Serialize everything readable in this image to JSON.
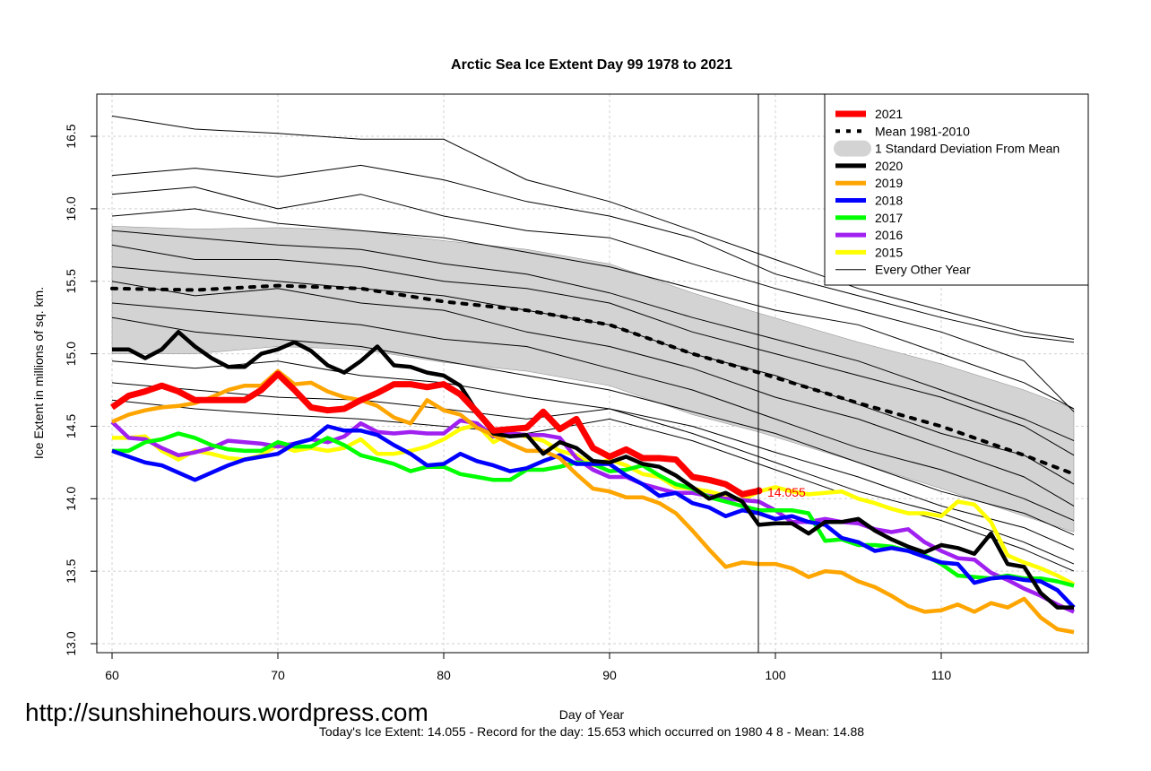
{
  "chart_data": {
    "type": "line",
    "title": "Arctic Sea Ice Extent Day 99 1978 to 2021",
    "xlabel": "Day of Year",
    "ylabel": "Ice Extent in millions of sq. km.",
    "xlim": [
      59,
      118.8
    ],
    "ylim": [
      12.93,
      16.98
    ],
    "x_ticks": [
      60,
      70,
      80,
      90,
      100,
      110
    ],
    "y_ticks": [
      13.0,
      13.5,
      14.0,
      14.5,
      15.0,
      15.5,
      16.0,
      16.5
    ],
    "y_tick_labels": [
      "13.0",
      "13.5",
      "14.0",
      "14.5",
      "15.0",
      "15.5",
      "16.0",
      "16.5"
    ],
    "grid": true,
    "legend_position": "top-right",
    "vertical_marker_day": 99,
    "annotation": {
      "day": 99,
      "value": 14.055,
      "text": "14.055",
      "color": "#ff0000"
    },
    "mean": {
      "name": "Mean 1981-2010",
      "days": [
        60,
        65,
        70,
        75,
        80,
        85,
        90,
        95,
        99,
        105,
        110,
        115,
        118
      ],
      "values": [
        15.45,
        15.44,
        15.47,
        15.45,
        15.36,
        15.3,
        15.2,
        15.0,
        14.87,
        14.66,
        14.5,
        14.3,
        14.17
      ]
    },
    "std_band": {
      "name": "1 Standard Deviation From Mean",
      "days": [
        60,
        65,
        70,
        75,
        80,
        85,
        90,
        95,
        99,
        105,
        110,
        115,
        118
      ],
      "upper": [
        15.88,
        15.86,
        15.87,
        15.85,
        15.78,
        15.72,
        15.62,
        15.42,
        15.28,
        15.08,
        14.93,
        14.75,
        14.62
      ],
      "lower": [
        15.0,
        15.0,
        15.05,
        15.03,
        14.94,
        14.88,
        14.78,
        14.58,
        14.46,
        14.25,
        14.07,
        13.88,
        13.77
      ]
    },
    "series": [
      {
        "name": "2021",
        "color": "#ff0000",
        "width": 7,
        "start_day": 60,
        "values": [
          14.63,
          14.71,
          14.74,
          14.78,
          14.74,
          14.68,
          14.68,
          14.68,
          14.68,
          14.75,
          14.86,
          14.75,
          14.63,
          14.61,
          14.62,
          14.68,
          14.73,
          14.79,
          14.79,
          14.77,
          14.79,
          14.72,
          14.6,
          14.47,
          14.48,
          14.49,
          14.6,
          14.48,
          14.55,
          14.35,
          14.29,
          14.34,
          14.28,
          14.28,
          14.27,
          14.15,
          14.13,
          14.1,
          14.03,
          14.055
        ]
      },
      {
        "name": "2020",
        "color": "#000000",
        "width": 4.5,
        "start_day": 60,
        "values": [
          15.03,
          15.03,
          14.97,
          15.03,
          15.15,
          15.05,
          14.97,
          14.91,
          14.91,
          15.0,
          15.03,
          15.08,
          15.02,
          14.92,
          14.87,
          14.95,
          15.05,
          14.92,
          14.91,
          14.87,
          14.85,
          14.78,
          14.6,
          14.45,
          14.43,
          14.44,
          14.31,
          14.39,
          14.35,
          14.26,
          14.25,
          14.29,
          14.24,
          14.22,
          14.16,
          14.08,
          14.0,
          14.04,
          13.98,
          13.82,
          13.83,
          13.83,
          13.76,
          13.84,
          13.84,
          13.86,
          13.78,
          13.72,
          13.67,
          13.63,
          13.68,
          13.66,
          13.62,
          13.76,
          13.55,
          13.53,
          13.35,
          13.25,
          13.25
        ]
      },
      {
        "name": "2019",
        "color": "#ffa500",
        "width": 4.5,
        "start_day": 60,
        "values": [
          14.53,
          14.58,
          14.61,
          14.63,
          14.64,
          14.66,
          14.7,
          14.75,
          14.78,
          14.78,
          14.88,
          14.79,
          14.8,
          14.74,
          14.7,
          14.68,
          14.64,
          14.56,
          14.52,
          14.68,
          14.61,
          14.58,
          14.49,
          14.44,
          14.38,
          14.33,
          14.33,
          14.28,
          14.17,
          14.07,
          14.05,
          14.01,
          14.01,
          13.97,
          13.9,
          13.78,
          13.65,
          13.53,
          13.56,
          13.55,
          13.55,
          13.52,
          13.46,
          13.5,
          13.49,
          13.43,
          13.39,
          13.33,
          13.26,
          13.22,
          13.23,
          13.27,
          13.22,
          13.28,
          13.25,
          13.31,
          13.18,
          13.1,
          13.08
        ]
      },
      {
        "name": "2018",
        "color": "#0000ff",
        "width": 4.5,
        "start_day": 60,
        "values": [
          14.33,
          14.29,
          14.25,
          14.23,
          14.18,
          14.13,
          14.18,
          14.23,
          14.27,
          14.29,
          14.31,
          14.38,
          14.41,
          14.5,
          14.47,
          14.47,
          14.44,
          14.37,
          14.31,
          14.23,
          14.24,
          14.31,
          14.26,
          14.23,
          14.19,
          14.21,
          14.26,
          14.3,
          14.24,
          14.24,
          14.24,
          14.16,
          14.1,
          14.02,
          14.04,
          13.97,
          13.94,
          13.88,
          13.92,
          13.9,
          13.86,
          13.88,
          13.84,
          13.82,
          13.73,
          13.7,
          13.64,
          13.66,
          13.64,
          13.6,
          13.56,
          13.55,
          13.42,
          13.45,
          13.46,
          13.44,
          13.43,
          13.37,
          13.25
        ]
      },
      {
        "name": "2017",
        "color": "#00ff00",
        "width": 4.5,
        "start_day": 60,
        "values": [
          14.33,
          14.33,
          14.39,
          14.41,
          14.45,
          14.42,
          14.37,
          14.34,
          14.33,
          14.33,
          14.39,
          14.36,
          14.36,
          14.42,
          14.37,
          14.3,
          14.27,
          14.24,
          14.19,
          14.22,
          14.22,
          14.17,
          14.15,
          14.13,
          14.13,
          14.2,
          14.2,
          14.22,
          14.25,
          14.24,
          14.19,
          14.2,
          14.23,
          14.16,
          14.1,
          14.07,
          14.01,
          13.98,
          13.95,
          13.92,
          13.92,
          13.92,
          13.9,
          13.71,
          13.72,
          13.68,
          13.68,
          13.67,
          13.64,
          13.61,
          13.55,
          13.47,
          13.46,
          13.45,
          13.47,
          13.45,
          13.45,
          13.43,
          13.4
        ]
      },
      {
        "name": "2016",
        "color": "#a020f0",
        "width": 4.5,
        "start_day": 60,
        "values": [
          14.53,
          14.42,
          14.41,
          14.35,
          14.3,
          14.32,
          14.35,
          14.4,
          14.39,
          14.38,
          14.36,
          14.38,
          14.41,
          14.39,
          14.43,
          14.52,
          14.46,
          14.45,
          14.46,
          14.45,
          14.45,
          14.54,
          14.52,
          14.43,
          14.45,
          14.44,
          14.44,
          14.42,
          14.28,
          14.2,
          14.15,
          14.15,
          14.1,
          14.07,
          14.04,
          14.04,
          14.02,
          14.0,
          13.99,
          13.98,
          13.92,
          13.84,
          13.84,
          13.86,
          13.84,
          13.83,
          13.79,
          13.77,
          13.79,
          13.7,
          13.64,
          13.59,
          13.58,
          13.49,
          13.44,
          13.38,
          13.33,
          13.27,
          13.22
        ]
      },
      {
        "name": "2015",
        "color": "#ffff00",
        "width": 4.5,
        "start_day": 60,
        "values": [
          14.42,
          14.42,
          14.43,
          14.33,
          14.27,
          14.33,
          14.31,
          14.28,
          14.27,
          14.3,
          14.37,
          14.33,
          14.35,
          14.33,
          14.35,
          14.41,
          14.31,
          14.31,
          14.33,
          14.36,
          14.41,
          14.48,
          14.51,
          14.39,
          14.45,
          14.43,
          14.4,
          14.33,
          14.3,
          14.23,
          14.27,
          14.23,
          14.17,
          14.15,
          14.08,
          14.07,
          14.05,
          14.02,
          13.99,
          14.05,
          14.08,
          14.05,
          14.03,
          14.04,
          14.05,
          14.0,
          13.97,
          13.93,
          13.9,
          13.9,
          13.88,
          13.98,
          13.96,
          13.84,
          13.61,
          13.56,
          13.52,
          13.47,
          13.41
        ]
      }
    ],
    "other_years": {
      "name": "Every Other Year",
      "color": "#000000",
      "days": [
        60,
        65,
        70,
        75,
        80,
        85,
        90,
        95,
        100,
        105,
        110,
        115,
        118
      ],
      "lines": [
        [
          16.64,
          16.55,
          16.52,
          16.48,
          16.48,
          16.2,
          16.05,
          15.85,
          15.65,
          15.45,
          15.3,
          15.15,
          15.1
        ],
        [
          16.23,
          16.28,
          16.22,
          16.3,
          16.2,
          16.05,
          15.95,
          15.8,
          15.55,
          15.4,
          15.25,
          15.12,
          15.08
        ],
        [
          16.1,
          16.15,
          16.0,
          16.1,
          15.95,
          15.85,
          15.8,
          15.62,
          15.45,
          15.3,
          15.15,
          14.95,
          14.6
        ],
        [
          15.95,
          16.0,
          15.9,
          15.85,
          15.8,
          15.7,
          15.6,
          15.45,
          15.3,
          15.2,
          15.0,
          14.8,
          14.62
        ],
        [
          15.85,
          15.8,
          15.75,
          15.72,
          15.62,
          15.55,
          15.42,
          15.25,
          15.1,
          14.95,
          14.75,
          14.55,
          14.4
        ],
        [
          15.75,
          15.65,
          15.65,
          15.6,
          15.5,
          15.45,
          15.35,
          15.15,
          15.0,
          14.85,
          14.7,
          14.5,
          14.3
        ],
        [
          15.6,
          15.55,
          15.5,
          15.45,
          15.4,
          15.3,
          15.2,
          15.0,
          14.85,
          14.65,
          14.45,
          14.3,
          14.1
        ],
        [
          15.5,
          15.4,
          15.45,
          15.35,
          15.3,
          15.15,
          15.05,
          14.9,
          14.7,
          14.55,
          14.35,
          14.15,
          13.95
        ],
        [
          15.35,
          15.3,
          15.25,
          15.2,
          15.1,
          15.05,
          14.9,
          14.75,
          14.55,
          14.35,
          14.2,
          14.0,
          13.85
        ],
        [
          15.25,
          15.15,
          15.1,
          15.05,
          14.95,
          14.85,
          14.75,
          14.6,
          14.45,
          14.25,
          14.05,
          13.9,
          13.75
        ],
        [
          14.95,
          14.9,
          14.95,
          14.85,
          14.8,
          14.7,
          14.62,
          14.5,
          14.32,
          14.15,
          13.95,
          13.8,
          13.65
        ],
        [
          14.8,
          14.75,
          14.7,
          14.68,
          14.62,
          14.55,
          14.62,
          14.45,
          14.25,
          14.05,
          13.9,
          13.7,
          13.55
        ],
        [
          14.68,
          14.62,
          14.58,
          14.55,
          14.5,
          14.45,
          14.55,
          14.4,
          14.2,
          14.0,
          13.85,
          13.65,
          13.5
        ]
      ]
    }
  },
  "footer": "Today's Ice Extent: 14.055  - Record for the day: 15.653 which occurred on 1980 4 8  - Mean: 14.88",
  "watermark": "http://sunshinehours.wordpress.com"
}
